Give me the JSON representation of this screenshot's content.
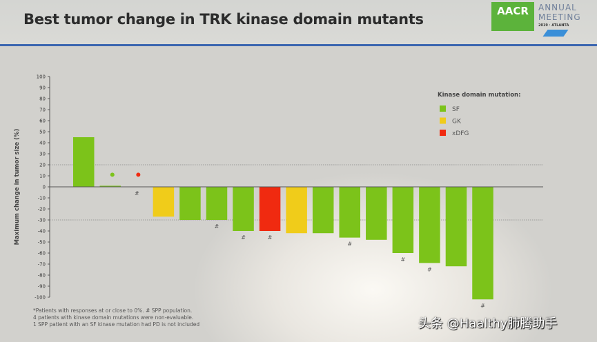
{
  "slide": {
    "title": "Best tumor change in TRK kinase domain mutants",
    "logo": {
      "brand": "AACR",
      "text1": "ANNUAL",
      "text2": "MEETING",
      "text3": "2019 · ATLANTA"
    },
    "footnotes": [
      "*Patients with responses at or close to 0%. # SPP population.",
      "4 patients with kinase domain mutations were non-evaluable.",
      "1 SPP patient with an SF kinase mutation had PD is not included"
    ],
    "watermark": "头条 @Haalthy肺腾助手"
  },
  "chart_data": {
    "type": "bar",
    "title": "",
    "ylabel": "Maximum change in tumor size (%)",
    "xlabel": "",
    "ylim": [
      -100,
      100
    ],
    "yticks": [
      100,
      90,
      80,
      70,
      60,
      50,
      40,
      30,
      20,
      10,
      0,
      -10,
      -20,
      -30,
      -40,
      -50,
      -60,
      -70,
      -80,
      -90,
      -100
    ],
    "reference_lines": [
      20,
      -30
    ],
    "legend": {
      "title": "Kinase domain mutation:",
      "position": "top-right",
      "entries": [
        {
          "name": "SF",
          "color": "#7cc31a"
        },
        {
          "name": "GK",
          "color": "#f0cc1a"
        },
        {
          "name": "xDFG",
          "color": "#f02a10"
        }
      ]
    },
    "bars": [
      {
        "value": 45,
        "mutation": "SF",
        "marker": ""
      },
      {
        "value": 1,
        "mutation": "SF",
        "marker": "*"
      },
      {
        "value": 0,
        "mutation": "xDFG",
        "marker": "*#"
      },
      {
        "value": -27,
        "mutation": "GK",
        "marker": ""
      },
      {
        "value": -30,
        "mutation": "SF",
        "marker": ""
      },
      {
        "value": -30,
        "mutation": "SF",
        "marker": "#"
      },
      {
        "value": -40,
        "mutation": "SF",
        "marker": "#"
      },
      {
        "value": -40,
        "mutation": "xDFG",
        "marker": "#"
      },
      {
        "value": -42,
        "mutation": "GK",
        "marker": ""
      },
      {
        "value": -42,
        "mutation": "SF",
        "marker": ""
      },
      {
        "value": -46,
        "mutation": "SF",
        "marker": "#"
      },
      {
        "value": -48,
        "mutation": "SF",
        "marker": ""
      },
      {
        "value": -60,
        "mutation": "SF",
        "marker": "#"
      },
      {
        "value": -69,
        "mutation": "SF",
        "marker": "#"
      },
      {
        "value": -72,
        "mutation": "SF",
        "marker": ""
      },
      {
        "value": -102,
        "mutation": "SF",
        "marker": "#"
      }
    ]
  }
}
